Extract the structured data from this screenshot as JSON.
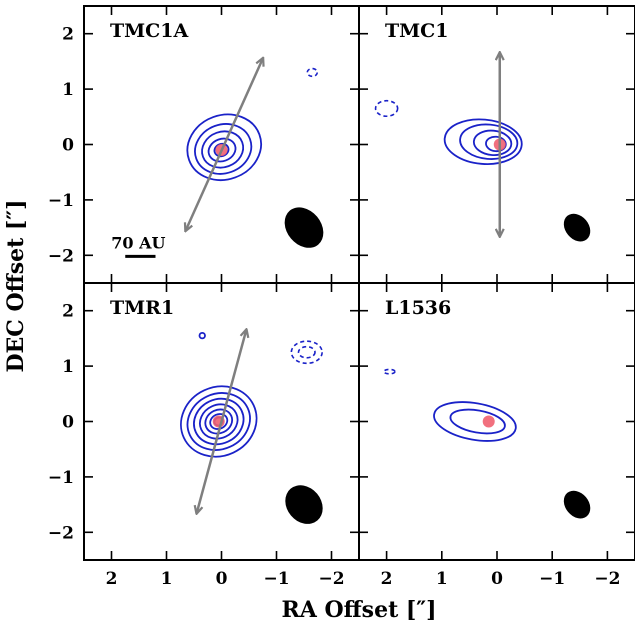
{
  "chart_data": {
    "type": "contour",
    "xlabel": "RA Offset [″]",
    "ylabel": "DEC Offset [″]",
    "xlim": [
      2.5,
      -2.5
    ],
    "ylim": [
      -2.5,
      2.5
    ],
    "xticks": [
      2,
      1,
      0,
      -1,
      -2
    ],
    "yticks": [
      2,
      1,
      0,
      -1,
      -2
    ],
    "xtick_labels": [
      "2",
      "1",
      "0",
      "−1",
      "−2"
    ],
    "ytick_labels": [
      "2",
      "1",
      "0",
      "−1",
      "−2"
    ],
    "colors": {
      "contour": "#1a22c8",
      "peak": "#f06070",
      "arrow": "#7f7f7f",
      "beam": "#000000"
    },
    "panels": [
      {
        "name": "TMC1A",
        "peak": [
          0.0,
          -0.1
        ],
        "contours": [
          {
            "cx": -0.05,
            "cy": -0.05,
            "rx": 0.68,
            "ry": 0.58,
            "angle": -20
          },
          {
            "cx": -0.03,
            "cy": -0.08,
            "rx": 0.52,
            "ry": 0.44,
            "angle": -20
          },
          {
            "cx": -0.02,
            "cy": -0.09,
            "rx": 0.38,
            "ry": 0.32,
            "angle": -20
          },
          {
            "cx": -0.01,
            "cy": -0.1,
            "rx": 0.25,
            "ry": 0.2,
            "angle": -20
          },
          {
            "cx": 0.0,
            "cy": -0.1,
            "rx": 0.13,
            "ry": 0.11,
            "angle": -20
          }
        ],
        "negative_contours": [
          {
            "cx": -1.65,
            "cy": 1.3,
            "rx": 0.09,
            "ry": 0.07,
            "angle": 0
          }
        ],
        "arrow": {
          "x1": 0.65,
          "y1": -1.55,
          "x2": -0.75,
          "y2": 1.55
        },
        "beam": {
          "cx": -1.5,
          "cy": -1.5,
          "major": 0.8,
          "minor": 0.62,
          "angle": -40
        },
        "scale_bar": {
          "label": "70 AU",
          "x_start": 1.75,
          "x_end": 1.2,
          "y": -2.02
        }
      },
      {
        "name": "TMC1",
        "peak": [
          -0.05,
          0.0
        ],
        "contours": [
          {
            "cx": 0.25,
            "cy": 0.05,
            "rx": 0.7,
            "ry": 0.4,
            "angle": 5
          },
          {
            "cx": 0.15,
            "cy": 0.05,
            "rx": 0.52,
            "ry": 0.31,
            "angle": 5
          },
          {
            "cx": 0.08,
            "cy": 0.03,
            "rx": 0.34,
            "ry": 0.22,
            "angle": 5
          },
          {
            "cx": 0.02,
            "cy": 0.01,
            "rx": 0.18,
            "ry": 0.13,
            "angle": 5
          }
        ],
        "negative_contours": [
          {
            "cx": 2.0,
            "cy": 0.65,
            "rx": 0.2,
            "ry": 0.14,
            "angle": 0
          }
        ],
        "arrow": {
          "x1": -0.05,
          "y1": -1.65,
          "x2": -0.05,
          "y2": 1.65
        },
        "beam": {
          "cx": -1.45,
          "cy": -1.5,
          "major": 0.55,
          "minor": 0.42,
          "angle": -40
        }
      },
      {
        "name": "TMR1",
        "peak": [
          0.05,
          0.0
        ],
        "contours": [
          {
            "cx": 0.05,
            "cy": 0.0,
            "rx": 0.7,
            "ry": 0.62,
            "angle": -25
          },
          {
            "cx": 0.05,
            "cy": 0.0,
            "rx": 0.58,
            "ry": 0.5,
            "angle": -25
          },
          {
            "cx": 0.05,
            "cy": 0.0,
            "rx": 0.46,
            "ry": 0.4,
            "angle": -25
          },
          {
            "cx": 0.05,
            "cy": 0.0,
            "rx": 0.35,
            "ry": 0.3,
            "angle": -25
          },
          {
            "cx": 0.05,
            "cy": 0.0,
            "rx": 0.25,
            "ry": 0.21,
            "angle": -25
          },
          {
            "cx": 0.05,
            "cy": 0.0,
            "rx": 0.16,
            "ry": 0.13,
            "angle": -25
          },
          {
            "cx": 0.05,
            "cy": 0.0,
            "rx": 0.08,
            "ry": 0.07,
            "angle": -25
          }
        ],
        "negative_contours": [
          {
            "cx": -1.55,
            "cy": 1.25,
            "rx": 0.28,
            "ry": 0.2,
            "angle": 0
          },
          {
            "cx": -1.55,
            "cy": 1.25,
            "rx": 0.15,
            "ry": 0.1,
            "angle": 0
          }
        ],
        "small_contours": [
          {
            "cx": 0.35,
            "cy": 1.55,
            "rx": 0.05,
            "ry": 0.05,
            "angle": 0
          }
        ],
        "arrow": {
          "x1": 0.45,
          "y1": -1.65,
          "x2": -0.45,
          "y2": 1.65
        },
        "beam": {
          "cx": -1.5,
          "cy": -1.5,
          "major": 0.75,
          "minor": 0.62,
          "angle": -40
        }
      },
      {
        "name": "L1536",
        "peak": [
          0.15,
          0.0
        ],
        "contours": [
          {
            "cx": 0.4,
            "cy": 0.0,
            "rx": 0.75,
            "ry": 0.33,
            "angle": 10
          },
          {
            "cx": 0.35,
            "cy": 0.0,
            "rx": 0.5,
            "ry": 0.2,
            "angle": 10
          }
        ],
        "negative_contours": [
          {
            "cx": 1.95,
            "cy": 0.9,
            "rx": 0.1,
            "ry": 0.04,
            "angle": 0
          }
        ],
        "beam": {
          "cx": -1.45,
          "cy": -1.5,
          "major": 0.55,
          "minor": 0.42,
          "angle": -40
        }
      }
    ]
  }
}
